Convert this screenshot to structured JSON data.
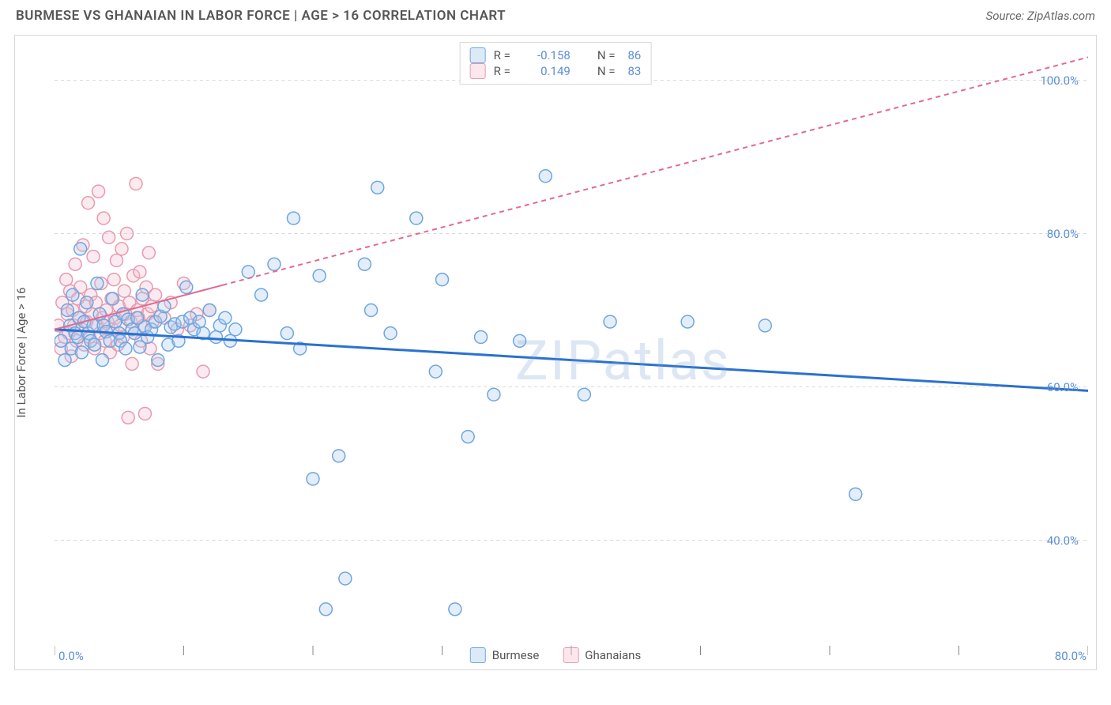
{
  "header": {
    "title": "BURMESE VS GHANAIAN IN LABOR FORCE | AGE > 16 CORRELATION CHART",
    "source": "Source: ZipAtlas.com"
  },
  "chart": {
    "type": "scatter",
    "ylabel": "In Labor Force | Age > 16",
    "watermark": "ZIPatlas",
    "xlim": [
      0,
      80
    ],
    "ylim": [
      25,
      105
    ],
    "xticks": [
      0,
      10,
      20,
      30,
      40,
      50,
      60,
      70,
      80
    ],
    "xtick_labels": {
      "0": "0.0%",
      "80": "80.0%"
    },
    "yticks": [
      40,
      60,
      80,
      100
    ],
    "ytick_labels": {
      "40": "40.0%",
      "60": "60.0%",
      "80": "80.0%",
      "100": "100.0%"
    },
    "grid_color": "#d8d8d8",
    "grid_dash": "4 4",
    "background": "#ffffff",
    "marker_radius": 8,
    "marker_stroke_width": 1.5,
    "marker_fill_opacity": 0.32,
    "series": [
      {
        "name": "Burmese",
        "color_stroke": "#6fa5e0",
        "color_fill": "#a8cbee",
        "R": "-0.158",
        "N": "86",
        "trend": {
          "x0": 0,
          "y0": 67.5,
          "x1": 80,
          "y1": 59.5,
          "solid_until_x": 80,
          "stroke": "#2a71d0",
          "width": 3
        },
        "points": [
          [
            0.5,
            66
          ],
          [
            0.8,
            63.5
          ],
          [
            1,
            70
          ],
          [
            1.2,
            68
          ],
          [
            1.3,
            65
          ],
          [
            1.4,
            72
          ],
          [
            1.6,
            67
          ],
          [
            1.8,
            66.5
          ],
          [
            1.9,
            69
          ],
          [
            2,
            78
          ],
          [
            2.1,
            64.5
          ],
          [
            2.3,
            68.5
          ],
          [
            2.5,
            71
          ],
          [
            2.6,
            67
          ],
          [
            2.8,
            66
          ],
          [
            3,
            68
          ],
          [
            3.1,
            65.5
          ],
          [
            3.3,
            73.5
          ],
          [
            3.5,
            69.5
          ],
          [
            3.7,
            63.5
          ],
          [
            3.8,
            68
          ],
          [
            4,
            67.2
          ],
          [
            4.3,
            66
          ],
          [
            4.5,
            71.5
          ],
          [
            4.7,
            68.5
          ],
          [
            5,
            67
          ],
          [
            5.1,
            66
          ],
          [
            5.3,
            69.5
          ],
          [
            5.5,
            65
          ],
          [
            5.7,
            68.8
          ],
          [
            6,
            67.5
          ],
          [
            6.2,
            67
          ],
          [
            6.4,
            69
          ],
          [
            6.6,
            65.2
          ],
          [
            6.8,
            72
          ],
          [
            7,
            67.8
          ],
          [
            7.2,
            66.5
          ],
          [
            7.5,
            67.5
          ],
          [
            7.8,
            68.5
          ],
          [
            8,
            63.5
          ],
          [
            8.2,
            69.2
          ],
          [
            8.5,
            70.5
          ],
          [
            8.8,
            65.5
          ],
          [
            9,
            67.8
          ],
          [
            9.3,
            68.2
          ],
          [
            9.6,
            66
          ],
          [
            9.9,
            68.5
          ],
          [
            10.2,
            73
          ],
          [
            10.5,
            69
          ],
          [
            10.8,
            67.5
          ],
          [
            11.2,
            68.5
          ],
          [
            11.5,
            67
          ],
          [
            12,
            70
          ],
          [
            12.5,
            66.5
          ],
          [
            12.8,
            68
          ],
          [
            13.2,
            69
          ],
          [
            13.6,
            66
          ],
          [
            14,
            67.5
          ],
          [
            15,
            75
          ],
          [
            16,
            72
          ],
          [
            17,
            76
          ],
          [
            18,
            67
          ],
          [
            18.5,
            82
          ],
          [
            19,
            65
          ],
          [
            20,
            48
          ],
          [
            20.5,
            74.5
          ],
          [
            21,
            31
          ],
          [
            22,
            51
          ],
          [
            22.5,
            35
          ],
          [
            24,
            76
          ],
          [
            24.5,
            70
          ],
          [
            25,
            86
          ],
          [
            26,
            67
          ],
          [
            28,
            82
          ],
          [
            29.5,
            62
          ],
          [
            30,
            74
          ],
          [
            31,
            31
          ],
          [
            32,
            53.5
          ],
          [
            33,
            66.5
          ],
          [
            34,
            59
          ],
          [
            36,
            66
          ],
          [
            38,
            87.5
          ],
          [
            41,
            59
          ],
          [
            43,
            68.5
          ],
          [
            49,
            68.5
          ],
          [
            55,
            68
          ],
          [
            62,
            46
          ]
        ]
      },
      {
        "name": "Ghanaians",
        "color_stroke": "#e79ab0",
        "color_fill": "#f4c2d0",
        "R": "0.149",
        "N": "83",
        "trend": {
          "x0": 0,
          "y0": 67.5,
          "x1": 80,
          "y1": 103,
          "solid_until_x": 13,
          "stroke": "#e26a8f",
          "width": 2
        },
        "points": [
          [
            0.3,
            68
          ],
          [
            0.5,
            65
          ],
          [
            0.6,
            71
          ],
          [
            0.8,
            66.5
          ],
          [
            0.9,
            74
          ],
          [
            1,
            69.5
          ],
          [
            1.1,
            67
          ],
          [
            1.2,
            72.5
          ],
          [
            1.3,
            64
          ],
          [
            1.4,
            70
          ],
          [
            1.5,
            68
          ],
          [
            1.6,
            76
          ],
          [
            1.7,
            66
          ],
          [
            1.8,
            71.5
          ],
          [
            1.9,
            69
          ],
          [
            2,
            73
          ],
          [
            2.1,
            67.5
          ],
          [
            2.2,
            78.5
          ],
          [
            2.3,
            65.5
          ],
          [
            2.4,
            70.5
          ],
          [
            2.5,
            68.5
          ],
          [
            2.6,
            84
          ],
          [
            2.7,
            66.5
          ],
          [
            2.8,
            72
          ],
          [
            2.9,
            69.5
          ],
          [
            3,
            77
          ],
          [
            3.1,
            65
          ],
          [
            3.2,
            71
          ],
          [
            3.3,
            68
          ],
          [
            3.4,
            85.5
          ],
          [
            3.5,
            67
          ],
          [
            3.6,
            73.5
          ],
          [
            3.7,
            69
          ],
          [
            3.8,
            82
          ],
          [
            3.9,
            66
          ],
          [
            4,
            70
          ],
          [
            4.1,
            68.5
          ],
          [
            4.2,
            79.5
          ],
          [
            4.3,
            64.5
          ],
          [
            4.4,
            71.5
          ],
          [
            4.5,
            67.5
          ],
          [
            4.6,
            74
          ],
          [
            4.7,
            69
          ],
          [
            4.8,
            76.5
          ],
          [
            4.9,
            65.5
          ],
          [
            5,
            70.5
          ],
          [
            5.1,
            68
          ],
          [
            5.2,
            78
          ],
          [
            5.3,
            66.5
          ],
          [
            5.4,
            72.5
          ],
          [
            5.5,
            69.5
          ],
          [
            5.6,
            80
          ],
          [
            5.7,
            56
          ],
          [
            5.8,
            71
          ],
          [
            5.9,
            68.5
          ],
          [
            6,
            63
          ],
          [
            6.1,
            74.5
          ],
          [
            6.2,
            67
          ],
          [
            6.3,
            86.5
          ],
          [
            6.4,
            70
          ],
          [
            6.5,
            69
          ],
          [
            6.6,
            75
          ],
          [
            6.7,
            66
          ],
          [
            6.8,
            71.5
          ],
          [
            6.9,
            68
          ],
          [
            7,
            56.5
          ],
          [
            7.1,
            73
          ],
          [
            7.2,
            69.5
          ],
          [
            7.3,
            77.5
          ],
          [
            7.4,
            65
          ],
          [
            7.5,
            70.5
          ],
          [
            7.6,
            68.5
          ],
          [
            7.8,
            72
          ],
          [
            8,
            63
          ],
          [
            8.5,
            69
          ],
          [
            9,
            71
          ],
          [
            9.5,
            67.5
          ],
          [
            10,
            73.5
          ],
          [
            10.5,
            68
          ],
          [
            11,
            69.5
          ],
          [
            11.5,
            62
          ],
          [
            12,
            70
          ]
        ]
      }
    ],
    "legend_top": {
      "R_label": "R =",
      "N_label": "N ="
    },
    "legend_bottom": [
      {
        "label": "Burmese",
        "series_index": 0
      },
      {
        "label": "Ghanaians",
        "series_index": 1
      }
    ]
  }
}
